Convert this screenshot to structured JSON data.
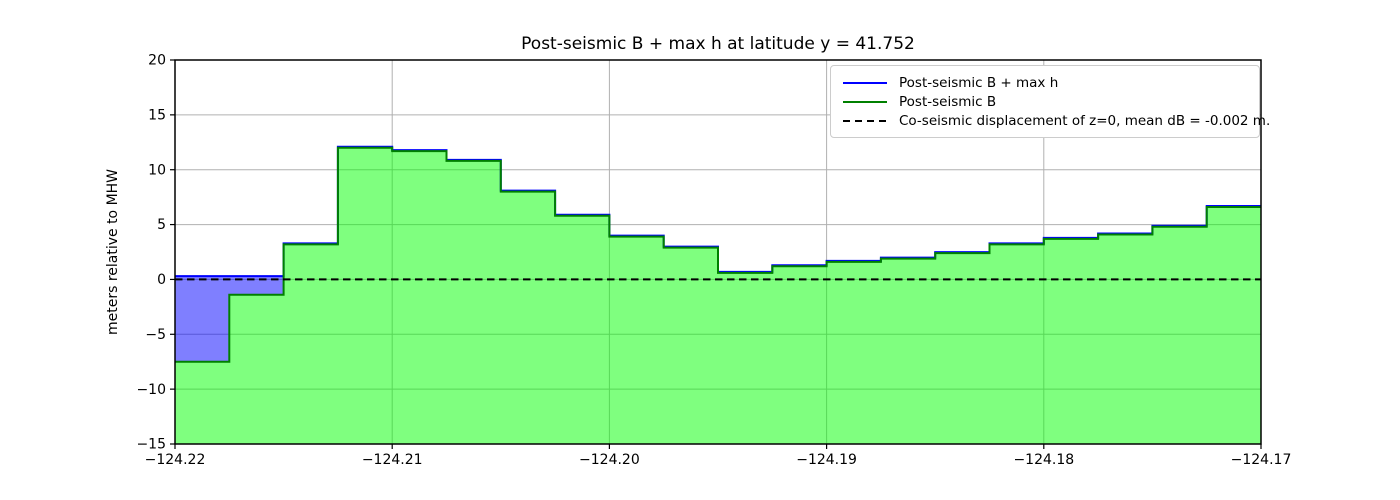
{
  "figure": {
    "title": "Post-seismic B + max h at latitude y = 41.752",
    "ylabel": "meters relative to MHW"
  },
  "legend": {
    "items": [
      {
        "label": "Post-seismic B + max h",
        "color": "#0000ff",
        "line_style": "solid"
      },
      {
        "label": "Post-seismic B",
        "color": "#008000",
        "line_style": "solid"
      },
      {
        "label": "Co-seismic displacement of z=0, mean dB = -0.002 m.",
        "color": "#000000",
        "line_style": "dashed"
      }
    ]
  },
  "chart_data": {
    "type": "area",
    "step_mode": "post",
    "title": "Post-seismic B + max h at latitude y = 41.752",
    "xlabel": "",
    "ylabel": "meters relative to MHW",
    "xlim": [
      -124.22,
      -124.17
    ],
    "ylim": [
      -15,
      20
    ],
    "grid": true,
    "grid_color": "#b0b0b0",
    "x_step": 0.0025,
    "x_edges": [
      -124.22,
      -124.2175,
      -124.215,
      -124.2125,
      -124.21,
      -124.2075,
      -124.205,
      -124.2025,
      -124.2,
      -124.1975,
      -124.195,
      -124.1925,
      -124.19,
      -124.1875,
      -124.185,
      -124.1825,
      -124.18,
      -124.1775,
      -124.175,
      -124.1725,
      -124.17
    ],
    "series": [
      {
        "name": "Post-seismic B + max h",
        "line_color": "#0000ff",
        "fill_color": "#0000ff",
        "fill_opacity": 0.5,
        "values": [
          0.3,
          0.3,
          3.2,
          12.0,
          11.7,
          10.8,
          8.0,
          5.8,
          3.9,
          2.9,
          0.6,
          1.2,
          1.6,
          1.9,
          2.4,
          3.2,
          3.7,
          4.1,
          4.8,
          6.6
        ]
      },
      {
        "name": "Post-seismic B",
        "line_color": "#008000",
        "fill_color": "#00ff00",
        "fill_opacity": 0.5,
        "values": [
          -7.5,
          -1.4,
          3.2,
          12.0,
          11.7,
          10.8,
          8.0,
          5.8,
          3.9,
          2.9,
          0.6,
          1.2,
          1.6,
          1.9,
          2.4,
          3.2,
          3.7,
          4.1,
          4.8,
          6.6
        ]
      }
    ],
    "zero_line": {
      "name": "Co-seismic displacement of z=0, mean dB = -0.002 m.",
      "y": 0,
      "color": "#000000",
      "style": "dashed"
    },
    "xticks": [
      -124.22,
      -124.21,
      -124.2,
      -124.19,
      -124.18,
      -124.17
    ],
    "xtick_labels": [
      "−124.22",
      "−124.21",
      "−124.20",
      "−124.19",
      "−124.18",
      "−124.17"
    ],
    "yticks": [
      -15,
      -10,
      -5,
      0,
      5,
      10,
      15,
      20
    ],
    "ytick_labels": [
      "−15",
      "−10",
      "−5",
      "0",
      "5",
      "10",
      "15",
      "20"
    ],
    "legend_position": "upper right"
  }
}
